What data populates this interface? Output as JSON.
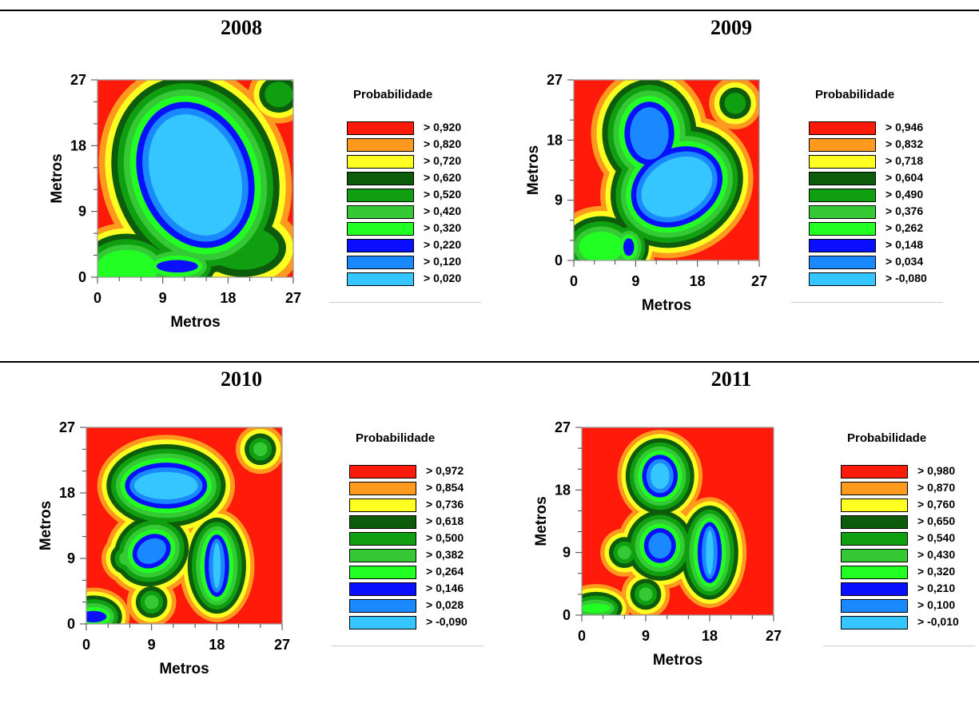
{
  "colors": {
    "red": "#ff1a0a",
    "orange": "#ff9a1e",
    "yellow": "#ffff22",
    "dkgreen": "#0c5c0c",
    "green1": "#109f10",
    "green2": "#36c936",
    "ltgreen": "#22ff22",
    "blue": "#0a10ff",
    "midblue": "#1a88ff",
    "cyan": "#35c5ff"
  },
  "chart_data": [
    {
      "type": "heatmap",
      "title": "2008",
      "xlabel": "Metros",
      "ylabel": "Metros",
      "xlim": [
        0,
        27
      ],
      "ylim": [
        0,
        27
      ],
      "xticks": [
        "0",
        "9",
        "18",
        "27"
      ],
      "yticks": [
        "0",
        "9",
        "18",
        "27"
      ],
      "legend_title": "Probabilidade",
      "legend": [
        "> 0,920",
        "> 0,820",
        "> 0,720",
        "> 0,620",
        "> 0,520",
        "> 0,420",
        "> 0,320",
        "> 0,220",
        "> 0,120",
        "> 0,020"
      ]
    },
    {
      "type": "heatmap",
      "title": "2009",
      "xlabel": "Metros",
      "ylabel": "Metros",
      "xlim": [
        0,
        27
      ],
      "ylim": [
        0,
        27
      ],
      "xticks": [
        "0",
        "9",
        "18",
        "27"
      ],
      "yticks": [
        "0",
        "9",
        "18",
        "27"
      ],
      "legend_title": "Probabilidade",
      "legend": [
        "> 0,946",
        "> 0,832",
        "> 0,718",
        "> 0,604",
        "> 0,490",
        "> 0,376",
        "> 0,262",
        "> 0,148",
        "> 0,034",
        "> -0,080"
      ]
    },
    {
      "type": "heatmap",
      "title": "2010",
      "xlabel": "Metros",
      "ylabel": "Metros",
      "xlim": [
        0,
        27
      ],
      "ylim": [
        0,
        27
      ],
      "xticks": [
        "0",
        "9",
        "18",
        "27"
      ],
      "yticks": [
        "0",
        "9",
        "18",
        "27"
      ],
      "legend_title": "Probabilidade",
      "legend": [
        "> 0,972",
        "> 0,854",
        "> 0,736",
        "> 0,618",
        "> 0,500",
        "> 0,382",
        "> 0,264",
        "> 0,146",
        "> 0,028",
        "> -0,090"
      ]
    },
    {
      "type": "heatmap",
      "title": "2011",
      "xlabel": "Metros",
      "ylabel": "Metros",
      "xlim": [
        0,
        27
      ],
      "ylim": [
        0,
        27
      ],
      "xticks": [
        "0",
        "9",
        "18",
        "27"
      ],
      "yticks": [
        "0",
        "9",
        "18",
        "27"
      ],
      "legend_title": "Probabilidade",
      "legend": [
        "> 0,980",
        "> 0,870",
        "> 0,760",
        "> 0,650",
        "> 0,540",
        "> 0,430",
        "> 0,320",
        "> 0,210",
        "> 0,100",
        "> -0,010"
      ]
    }
  ]
}
